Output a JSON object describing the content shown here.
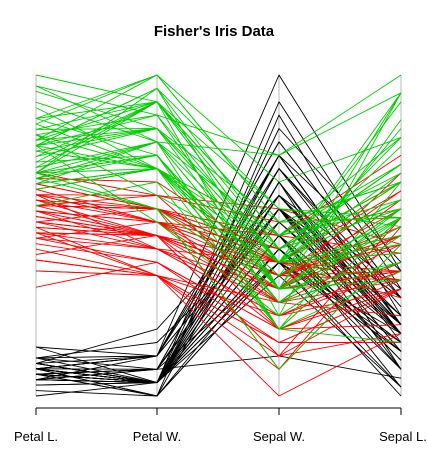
{
  "chart_data": {
    "type": "parallel-coordinates",
    "title": "Fisher's Iris Data",
    "axes": [
      "Petal L.",
      "Petal W.",
      "Sepal W.",
      "Sepal L."
    ],
    "axis_ranges": [
      [
        1.0,
        6.9
      ],
      [
        0.1,
        2.5
      ],
      [
        2.0,
        4.4
      ],
      [
        4.3,
        7.9
      ]
    ],
    "scale": "each axis scaled independently from its minimum (bottom) to its maximum (top)",
    "grid": false,
    "legend": "none",
    "series": [
      {
        "color": "#000000",
        "records": [
          [
            1.4,
            0.2,
            3.5,
            5.1
          ],
          [
            1.4,
            0.2,
            3.0,
            4.9
          ],
          [
            1.3,
            0.2,
            3.2,
            4.7
          ],
          [
            1.5,
            0.2,
            3.1,
            4.6
          ],
          [
            1.4,
            0.2,
            3.6,
            5.0
          ],
          [
            1.7,
            0.4,
            3.9,
            5.4
          ],
          [
            1.4,
            0.3,
            3.4,
            4.6
          ],
          [
            1.5,
            0.2,
            3.4,
            5.0
          ],
          [
            1.4,
            0.2,
            2.9,
            4.4
          ],
          [
            1.5,
            0.1,
            3.1,
            4.9
          ],
          [
            1.5,
            0.2,
            3.7,
            5.4
          ],
          [
            1.6,
            0.2,
            3.4,
            4.8
          ],
          [
            1.4,
            0.1,
            3.0,
            4.8
          ],
          [
            1.1,
            0.1,
            3.0,
            4.3
          ],
          [
            1.2,
            0.2,
            4.0,
            5.8
          ],
          [
            1.5,
            0.4,
            4.4,
            5.7
          ],
          [
            1.3,
            0.4,
            3.9,
            5.4
          ],
          [
            1.4,
            0.3,
            3.5,
            5.1
          ],
          [
            1.7,
            0.3,
            3.8,
            5.7
          ],
          [
            1.5,
            0.3,
            3.8,
            5.1
          ],
          [
            1.7,
            0.2,
            3.4,
            5.4
          ],
          [
            1.5,
            0.4,
            3.7,
            5.1
          ],
          [
            1.0,
            0.2,
            3.6,
            4.6
          ],
          [
            1.7,
            0.5,
            3.3,
            5.1
          ],
          [
            1.9,
            0.2,
            3.4,
            4.8
          ],
          [
            1.6,
            0.2,
            3.0,
            5.0
          ],
          [
            1.6,
            0.4,
            3.4,
            5.0
          ],
          [
            1.5,
            0.2,
            3.5,
            5.2
          ],
          [
            1.4,
            0.2,
            3.4,
            5.2
          ],
          [
            1.6,
            0.2,
            3.2,
            4.7
          ],
          [
            1.6,
            0.2,
            3.1,
            4.8
          ],
          [
            1.5,
            0.4,
            3.4,
            5.4
          ],
          [
            1.5,
            0.1,
            4.1,
            5.2
          ],
          [
            1.4,
            0.2,
            4.2,
            5.5
          ],
          [
            1.5,
            0.2,
            3.1,
            4.9
          ],
          [
            1.2,
            0.2,
            3.2,
            5.0
          ],
          [
            1.3,
            0.2,
            3.5,
            5.5
          ],
          [
            1.4,
            0.1,
            3.6,
            4.9
          ],
          [
            1.3,
            0.2,
            3.0,
            4.4
          ],
          [
            1.5,
            0.2,
            3.4,
            5.1
          ],
          [
            1.3,
            0.3,
            3.5,
            5.0
          ],
          [
            1.3,
            0.3,
            2.3,
            4.5
          ],
          [
            1.3,
            0.2,
            3.2,
            4.4
          ],
          [
            1.6,
            0.6,
            3.5,
            5.0
          ],
          [
            1.9,
            0.4,
            3.8,
            5.1
          ],
          [
            1.4,
            0.3,
            3.0,
            4.8
          ],
          [
            1.6,
            0.2,
            3.8,
            5.1
          ],
          [
            1.4,
            0.2,
            3.2,
            4.6
          ],
          [
            1.5,
            0.2,
            3.7,
            5.3
          ],
          [
            1.4,
            0.2,
            3.3,
            5.0
          ]
        ]
      },
      {
        "color": "#ff0000",
        "records": [
          [
            4.7,
            1.4,
            3.2,
            7.0
          ],
          [
            4.5,
            1.5,
            3.2,
            6.4
          ],
          [
            4.9,
            1.5,
            3.1,
            6.9
          ],
          [
            4.0,
            1.3,
            2.3,
            5.5
          ],
          [
            4.6,
            1.5,
            2.8,
            6.5
          ],
          [
            4.5,
            1.3,
            2.8,
            5.7
          ],
          [
            4.7,
            1.6,
            3.3,
            6.3
          ],
          [
            3.3,
            1.0,
            2.4,
            4.9
          ],
          [
            4.6,
            1.3,
            2.9,
            6.6
          ],
          [
            3.9,
            1.4,
            2.7,
            5.2
          ],
          [
            3.5,
            1.0,
            2.0,
            5.0
          ],
          [
            4.2,
            1.5,
            3.0,
            5.9
          ],
          [
            4.0,
            1.0,
            2.2,
            6.0
          ],
          [
            4.7,
            1.4,
            2.9,
            6.1
          ],
          [
            3.6,
            1.3,
            2.9,
            5.6
          ],
          [
            4.4,
            1.4,
            3.1,
            6.7
          ],
          [
            4.5,
            1.5,
            3.0,
            5.6
          ],
          [
            4.1,
            1.0,
            2.7,
            5.8
          ],
          [
            4.5,
            1.5,
            2.2,
            6.2
          ],
          [
            3.9,
            1.1,
            2.5,
            5.6
          ],
          [
            4.8,
            1.8,
            3.2,
            5.9
          ],
          [
            4.0,
            1.3,
            2.8,
            6.1
          ],
          [
            4.9,
            1.5,
            2.5,
            6.3
          ],
          [
            4.7,
            1.2,
            2.8,
            6.1
          ],
          [
            4.3,
            1.3,
            2.9,
            6.4
          ],
          [
            4.4,
            1.4,
            3.0,
            6.6
          ],
          [
            4.8,
            1.4,
            2.8,
            6.8
          ],
          [
            5.0,
            1.7,
            3.0,
            6.7
          ],
          [
            4.5,
            1.5,
            2.9,
            6.0
          ],
          [
            3.5,
            1.0,
            2.6,
            5.7
          ],
          [
            3.8,
            1.1,
            2.4,
            5.5
          ],
          [
            3.7,
            1.0,
            2.4,
            5.5
          ],
          [
            3.9,
            1.2,
            2.7,
            5.8
          ],
          [
            5.1,
            1.6,
            2.7,
            6.0
          ],
          [
            4.5,
            1.5,
            3.0,
            5.4
          ],
          [
            4.5,
            1.6,
            3.4,
            6.0
          ],
          [
            4.7,
            1.5,
            3.1,
            6.7
          ],
          [
            4.4,
            1.3,
            2.3,
            6.3
          ],
          [
            4.1,
            1.3,
            3.0,
            5.6
          ],
          [
            4.0,
            1.3,
            2.5,
            5.5
          ],
          [
            4.4,
            1.2,
            2.6,
            5.5
          ],
          [
            4.6,
            1.4,
            3.0,
            6.1
          ],
          [
            4.0,
            1.2,
            2.6,
            5.8
          ],
          [
            3.3,
            1.0,
            2.3,
            5.0
          ],
          [
            4.2,
            1.3,
            2.7,
            5.6
          ],
          [
            4.2,
            1.2,
            3.0,
            5.7
          ],
          [
            4.2,
            1.3,
            2.9,
            5.7
          ],
          [
            4.3,
            1.3,
            2.9,
            6.2
          ],
          [
            3.0,
            1.1,
            2.5,
            5.1
          ],
          [
            4.1,
            1.3,
            2.8,
            5.7
          ]
        ]
      },
      {
        "color": "#00cd00",
        "records": [
          [
            6.0,
            2.5,
            3.3,
            6.3
          ],
          [
            5.1,
            1.9,
            2.7,
            5.8
          ],
          [
            5.9,
            2.1,
            3.0,
            7.1
          ],
          [
            5.6,
            1.8,
            2.9,
            6.3
          ],
          [
            5.8,
            2.2,
            3.0,
            6.5
          ],
          [
            6.6,
            2.1,
            3.0,
            7.6
          ],
          [
            4.5,
            1.7,
            2.5,
            4.9
          ],
          [
            6.3,
            1.8,
            2.9,
            7.3
          ],
          [
            5.8,
            1.8,
            2.5,
            6.7
          ],
          [
            6.1,
            2.5,
            3.6,
            7.2
          ],
          [
            5.1,
            2.0,
            3.2,
            6.5
          ],
          [
            5.3,
            1.9,
            2.7,
            6.4
          ],
          [
            5.5,
            2.1,
            3.0,
            6.8
          ],
          [
            5.0,
            2.0,
            2.5,
            5.7
          ],
          [
            5.1,
            2.4,
            2.8,
            5.8
          ],
          [
            5.3,
            2.3,
            3.2,
            6.4
          ],
          [
            5.5,
            1.8,
            3.0,
            6.5
          ],
          [
            6.7,
            2.2,
            3.8,
            7.7
          ],
          [
            6.9,
            2.3,
            2.6,
            7.7
          ],
          [
            5.0,
            1.5,
            2.2,
            6.0
          ],
          [
            5.7,
            2.3,
            3.2,
            6.9
          ],
          [
            4.9,
            2.0,
            2.8,
            5.6
          ],
          [
            6.7,
            2.0,
            2.8,
            7.7
          ],
          [
            4.9,
            1.8,
            2.7,
            6.3
          ],
          [
            5.7,
            2.1,
            3.3,
            6.7
          ],
          [
            6.0,
            1.8,
            3.2,
            7.2
          ],
          [
            4.8,
            1.8,
            2.8,
            6.2
          ],
          [
            4.9,
            1.8,
            3.0,
            6.1
          ],
          [
            5.6,
            2.1,
            2.8,
            6.4
          ],
          [
            5.8,
            1.6,
            3.0,
            7.2
          ],
          [
            6.1,
            1.9,
            2.8,
            7.4
          ],
          [
            6.4,
            2.0,
            3.8,
            7.9
          ],
          [
            5.6,
            2.2,
            2.8,
            6.4
          ],
          [
            5.1,
            1.5,
            2.8,
            6.3
          ],
          [
            5.6,
            1.4,
            2.6,
            6.1
          ],
          [
            6.1,
            2.3,
            3.0,
            7.7
          ],
          [
            5.6,
            2.4,
            3.4,
            6.3
          ],
          [
            5.5,
            1.8,
            3.1,
            6.4
          ],
          [
            4.8,
            1.8,
            3.0,
            6.0
          ],
          [
            5.4,
            2.1,
            3.1,
            6.9
          ],
          [
            5.6,
            2.4,
            3.1,
            6.7
          ],
          [
            5.1,
            2.3,
            3.1,
            6.9
          ],
          [
            5.1,
            1.9,
            2.7,
            5.8
          ],
          [
            5.9,
            2.3,
            3.2,
            6.8
          ],
          [
            5.7,
            2.5,
            3.3,
            6.7
          ],
          [
            5.2,
            2.3,
            3.0,
            6.7
          ],
          [
            5.0,
            1.9,
            2.5,
            6.3
          ],
          [
            5.2,
            2.0,
            3.0,
            6.5
          ],
          [
            5.4,
            2.3,
            3.4,
            6.2
          ],
          [
            5.1,
            1.8,
            3.0,
            5.9
          ]
        ]
      }
    ]
  }
}
